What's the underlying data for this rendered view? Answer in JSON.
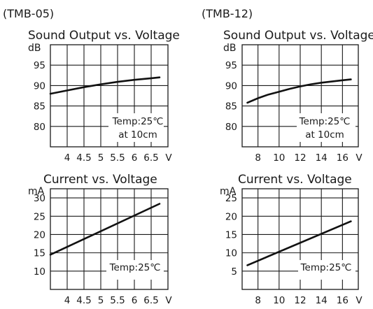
{
  "chart_data": [
    {
      "type": "line",
      "model": "(TMB-05)",
      "title": "Sound Output vs. Voltage",
      "ylabel": "dB",
      "xlabel": "V",
      "xticks": [
        "4",
        "4.5",
        "5",
        "5.5",
        "6",
        "6.5"
      ],
      "xtick_values": [
        4,
        4.5,
        5,
        5.5,
        6,
        6.5
      ],
      "yticks": [
        "95",
        "90",
        "85",
        "80"
      ],
      "ytick_values": [
        95,
        90,
        85,
        80
      ],
      "xlim": [
        3.5,
        7.0
      ],
      "ylim": [
        75,
        100
      ],
      "grid": true,
      "annotation": [
        "Temp:25℃",
        "at 10cm"
      ],
      "series": [
        {
          "x": [
            3.5,
            4.0,
            4.5,
            5.0,
            5.5,
            6.0,
            6.5,
            6.75
          ],
          "y": [
            88.0,
            88.8,
            89.6,
            90.3,
            90.9,
            91.4,
            91.8,
            92.0
          ]
        }
      ]
    },
    {
      "type": "line",
      "model": "(TMB-12)",
      "title": "Sound Output vs. Voltage",
      "ylabel": "dB",
      "xlabel": "V",
      "xticks": [
        "8",
        "10",
        "12",
        "14",
        "16"
      ],
      "xtick_values": [
        8,
        10,
        12,
        14,
        16
      ],
      "yticks": [
        "95",
        "90",
        "85",
        "80"
      ],
      "ytick_values": [
        95,
        90,
        85,
        80
      ],
      "xlim": [
        6.5,
        17.5
      ],
      "ylim": [
        75,
        100
      ],
      "grid": true,
      "annotation": [
        "Temp:25℃",
        "at 10cm"
      ],
      "series": [
        {
          "x": [
            7.0,
            8.0,
            9.0,
            10.0,
            11.0,
            12.0,
            13.0,
            14.0,
            15.0,
            16.0,
            16.8
          ],
          "y": [
            85.8,
            86.9,
            87.8,
            88.5,
            89.2,
            89.8,
            90.3,
            90.7,
            91.0,
            91.3,
            91.5
          ]
        }
      ]
    },
    {
      "type": "line",
      "model": "",
      "title": "Current vs. Voltage",
      "ylabel": "mA",
      "xlabel": "V",
      "xticks": [
        "4",
        "4.5",
        "5",
        "5.5",
        "6",
        "6.5"
      ],
      "xtick_values": [
        4,
        4.5,
        5,
        5.5,
        6,
        6.5
      ],
      "yticks": [
        "30",
        "25",
        "20",
        "15",
        "10"
      ],
      "ytick_values": [
        30,
        25,
        20,
        15,
        10
      ],
      "xlim": [
        3.5,
        7.0
      ],
      "ylim": [
        5,
        32.5
      ],
      "grid": true,
      "annotation": [
        "Temp:25℃"
      ],
      "series": [
        {
          "x": [
            3.5,
            6.75
          ],
          "y": [
            14.5,
            28.4
          ]
        }
      ]
    },
    {
      "type": "line",
      "model": "",
      "title": "Current vs. Voltage",
      "ylabel": "mA",
      "xlabel": "V",
      "xticks": [
        "8",
        "10",
        "12",
        "14",
        "16"
      ],
      "xtick_values": [
        8,
        10,
        12,
        14,
        16
      ],
      "yticks": [
        "25",
        "20",
        "15",
        "10",
        "5"
      ],
      "ytick_values": [
        25,
        20,
        15,
        10,
        5
      ],
      "xlim": [
        6.5,
        17.5
      ],
      "ylim": [
        0,
        27.5
      ],
      "grid": true,
      "annotation": [
        "Temp:25℃"
      ],
      "series": [
        {
          "x": [
            7.0,
            16.8
          ],
          "y": [
            6.6,
            18.6
          ]
        }
      ]
    }
  ]
}
